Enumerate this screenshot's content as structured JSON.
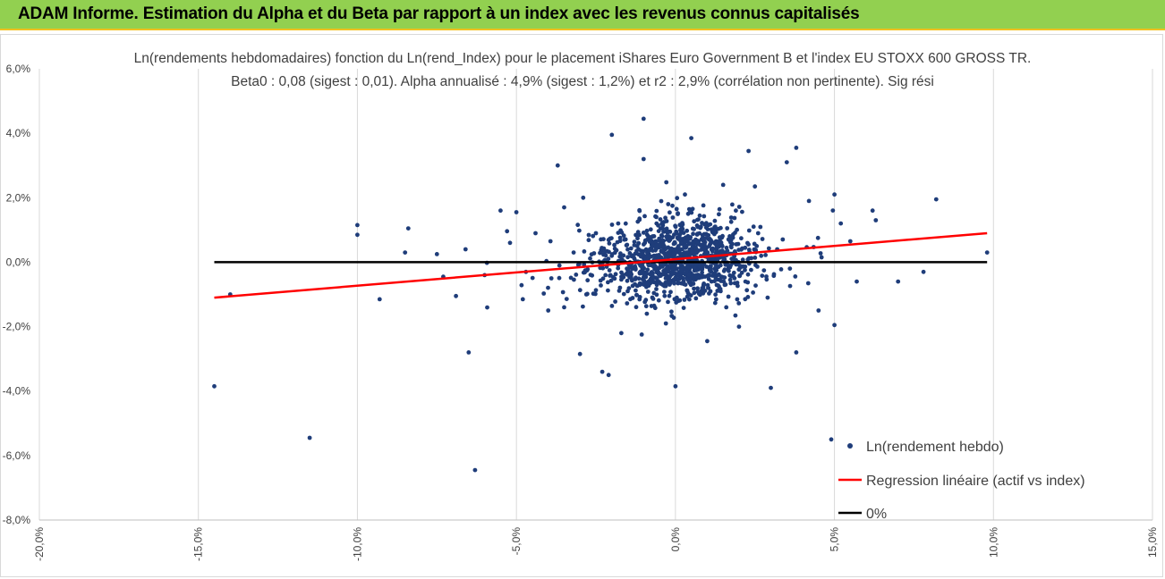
{
  "banner": {
    "title": "ADAM Informe. Estimation du Alpha et du Beta par rapport à un index avec les revenus connus capitalisés"
  },
  "chart_data": {
    "type": "scatter",
    "title": "Ln(rendements hebdomadaires) fonction du Ln(rend_Index) pour le placement iShares Euro Government B et l'index EU STOXX 600 GROSS TR.",
    "subtitle": "Beta0 : 0,08  (sigest : 0,01).  Alpha annualisé : 4,9% (sigest : 1,2%) et r2 : 2,9% (corrélation non pertinente). Sig rési",
    "xlabel": "",
    "ylabel": "",
    "xlim": [
      -20,
      15
    ],
    "ylim": [
      -8,
      6
    ],
    "x_ticks": [
      -20,
      -15,
      -10,
      -5,
      0,
      5,
      10,
      15
    ],
    "y_ticks": [
      -8,
      -6,
      -4,
      -2,
      0,
      2,
      4,
      6
    ],
    "x_tick_labels": [
      "-20,0%",
      "-15,0%",
      "-10,0%",
      "-5,0%",
      "0,0%",
      "5,0%",
      "10,0%",
      "15,0%"
    ],
    "y_tick_labels": [
      "-8,0%",
      "-6,0%",
      "-4,0%",
      "-2,0%",
      "0,0%",
      "2,0%",
      "4,0%",
      "6,0%"
    ],
    "grid": "vertical",
    "legend_position": "bottom-right",
    "colors": {
      "scatter": "#1f3d7a",
      "regression": "#ff0000",
      "zero": "#000000",
      "grid": "#d9d9d9",
      "banner": "#92d050"
    },
    "series": [
      {
        "name": "Ln(rendement hebdo)",
        "kind": "scatter",
        "points": [
          [
            -14.5,
            -3.85
          ],
          [
            -14.0,
            -1.0
          ],
          [
            -11.5,
            -5.45
          ],
          [
            -10.0,
            1.15
          ],
          [
            -10.0,
            0.85
          ],
          [
            -9.3,
            -1.15
          ],
          [
            -8.4,
            1.05
          ],
          [
            -8.5,
            0.3
          ],
          [
            -7.5,
            0.25
          ],
          [
            -7.3,
            -0.45
          ],
          [
            -6.9,
            -1.05
          ],
          [
            -6.6,
            0.4
          ],
          [
            -6.5,
            -2.8
          ],
          [
            -6.3,
            -6.45
          ],
          [
            -6.0,
            -0.4
          ],
          [
            -5.5,
            1.6
          ],
          [
            -5.0,
            1.55
          ],
          [
            -4.8,
            -1.15
          ],
          [
            -4.0,
            -1.5
          ],
          [
            -3.7,
            3.0
          ],
          [
            -3.5,
            -1.4
          ],
          [
            -3.0,
            -2.85
          ],
          [
            -2.3,
            -3.4
          ],
          [
            -2.1,
            -3.5
          ],
          [
            -2.0,
            3.95
          ],
          [
            -1.0,
            3.2
          ],
          [
            -1.0,
            4.45
          ],
          [
            0.0,
            -3.85
          ],
          [
            0.5,
            3.85
          ],
          [
            1.0,
            -2.45
          ],
          [
            2.3,
            3.45
          ],
          [
            2.5,
            2.35
          ],
          [
            3.0,
            -3.9
          ],
          [
            3.5,
            3.1
          ],
          [
            3.8,
            3.55
          ],
          [
            3.8,
            -2.8
          ],
          [
            4.2,
            1.9
          ],
          [
            4.5,
            -1.5
          ],
          [
            4.9,
            -5.5
          ],
          [
            5.0,
            -1.95
          ],
          [
            5.0,
            2.1
          ],
          [
            5.2,
            1.2
          ],
          [
            5.5,
            0.65
          ],
          [
            5.7,
            -0.6
          ],
          [
            6.2,
            1.6
          ],
          [
            6.3,
            1.3
          ],
          [
            7.0,
            -0.6
          ],
          [
            7.8,
            -0.3
          ],
          [
            8.2,
            1.95
          ],
          [
            9.8,
            0.3
          ],
          [
            -5.2,
            0.6
          ],
          [
            -4.4,
            0.9
          ],
          [
            -3.9,
            -0.5
          ],
          [
            -3.2,
            0.3
          ],
          [
            -2.8,
            -1.0
          ],
          [
            -2.5,
            0.9
          ],
          [
            -2.2,
            -0.4
          ],
          [
            -1.8,
            1.2
          ],
          [
            -1.5,
            -0.9
          ],
          [
            -1.2,
            0.5
          ],
          [
            -0.9,
            -1.6
          ],
          [
            -0.6,
            1.4
          ],
          [
            -0.4,
            -0.7
          ],
          [
            -0.2,
            0.8
          ],
          [
            0.1,
            -1.2
          ],
          [
            0.3,
            2.1
          ],
          [
            0.6,
            -0.5
          ],
          [
            0.8,
            1.1
          ],
          [
            1.1,
            -0.9
          ],
          [
            1.3,
            0.6
          ],
          [
            1.6,
            -1.4
          ],
          [
            1.9,
            1.6
          ],
          [
            2.2,
            -0.6
          ],
          [
            2.6,
            0.9
          ],
          [
            2.9,
            -1.1
          ],
          [
            3.2,
            0.4
          ],
          [
            -3.5,
            1.7
          ],
          [
            -4.7,
            -0.3
          ],
          [
            -2.9,
            2.0
          ],
          [
            -1.7,
            -2.2
          ],
          [
            1.5,
            2.4
          ],
          [
            2.0,
            -2.0
          ],
          [
            0.4,
            1.5
          ],
          [
            -0.3,
            -1.9
          ],
          [
            3.6,
            -0.2
          ]
        ]
      },
      {
        "name": "Regression linéaire (actif vs index)",
        "kind": "line",
        "x": [
          -14.5,
          9.8
        ],
        "y": [
          -1.1,
          0.9
        ]
      },
      {
        "name": "0%",
        "kind": "line",
        "x": [
          -14.5,
          9.8
        ],
        "y": [
          0,
          0
        ]
      }
    ]
  }
}
